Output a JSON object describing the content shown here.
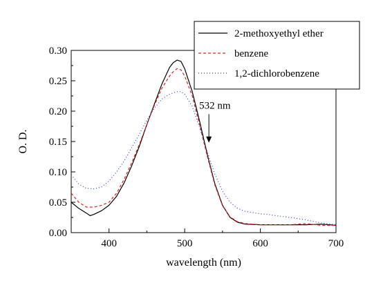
{
  "chart_data": {
    "type": "line",
    "xlabel": "wavelength (nm)",
    "ylabel": "O. D.",
    "xlim": [
      350,
      700
    ],
    "ylim": [
      0.0,
      0.3
    ],
    "x_ticks": [
      "400",
      "500",
      "600",
      "700"
    ],
    "x_tick_values": [
      400,
      500,
      600,
      700
    ],
    "y_ticks": [
      "0.00",
      "0.05",
      "0.10",
      "0.15",
      "0.20",
      "0.25",
      "0.30"
    ],
    "y_tick_values": [
      0.0,
      0.05,
      0.1,
      0.15,
      0.2,
      0.25,
      0.3
    ],
    "grid": false,
    "legend_position": "top-right",
    "annotation": {
      "text": "532 nm",
      "x": 532,
      "y_from": 0.195,
      "y_to": 0.148
    },
    "series": [
      {
        "name": "2-methoxyethyl ether",
        "color": "#000000",
        "style": "solid",
        "x": [
          350,
          360,
          370,
          375,
          380,
          390,
          400,
          410,
          420,
          430,
          440,
          450,
          460,
          470,
          480,
          485,
          490,
          495,
          500,
          510,
          520,
          530,
          540,
          550,
          560,
          570,
          580,
          600,
          620,
          640,
          660,
          680,
          700
        ],
        "y": [
          0.05,
          0.04,
          0.032,
          0.028,
          0.03,
          0.036,
          0.045,
          0.06,
          0.082,
          0.11,
          0.142,
          0.178,
          0.212,
          0.245,
          0.272,
          0.28,
          0.284,
          0.282,
          0.27,
          0.232,
          0.182,
          0.128,
          0.08,
          0.045,
          0.025,
          0.017,
          0.014,
          0.013,
          0.013,
          0.013,
          0.013,
          0.014,
          0.012
        ]
      },
      {
        "name": "benzene",
        "color": "#e0201c",
        "style": "dashed",
        "x": [
          350,
          360,
          370,
          380,
          390,
          400,
          410,
          420,
          430,
          440,
          450,
          460,
          470,
          480,
          485,
          490,
          495,
          500,
          510,
          520,
          530,
          540,
          550,
          560,
          570,
          580,
          600,
          620,
          640,
          660,
          680,
          700
        ],
        "y": [
          0.065,
          0.05,
          0.042,
          0.042,
          0.045,
          0.05,
          0.065,
          0.088,
          0.115,
          0.145,
          0.178,
          0.21,
          0.238,
          0.258,
          0.265,
          0.27,
          0.268,
          0.258,
          0.225,
          0.176,
          0.125,
          0.078,
          0.044,
          0.026,
          0.018,
          0.015,
          0.013,
          0.013,
          0.013,
          0.015,
          0.012,
          0.012
        ]
      },
      {
        "name": "1,2-dichlorobenzene",
        "color": "#1f3fd6",
        "style": "dotted",
        "x": [
          350,
          360,
          370,
          380,
          390,
          400,
          410,
          420,
          430,
          440,
          450,
          460,
          470,
          480,
          490,
          495,
          500,
          510,
          520,
          530,
          540,
          550,
          560,
          570,
          580,
          600,
          610,
          620,
          640,
          660,
          680,
          700
        ],
        "y": [
          0.095,
          0.08,
          0.073,
          0.072,
          0.075,
          0.085,
          0.1,
          0.118,
          0.14,
          0.162,
          0.185,
          0.205,
          0.22,
          0.228,
          0.232,
          0.232,
          0.228,
          0.208,
          0.172,
          0.132,
          0.096,
          0.068,
          0.05,
          0.04,
          0.035,
          0.031,
          0.03,
          0.028,
          0.025,
          0.021,
          0.016,
          0.013
        ]
      }
    ]
  }
}
